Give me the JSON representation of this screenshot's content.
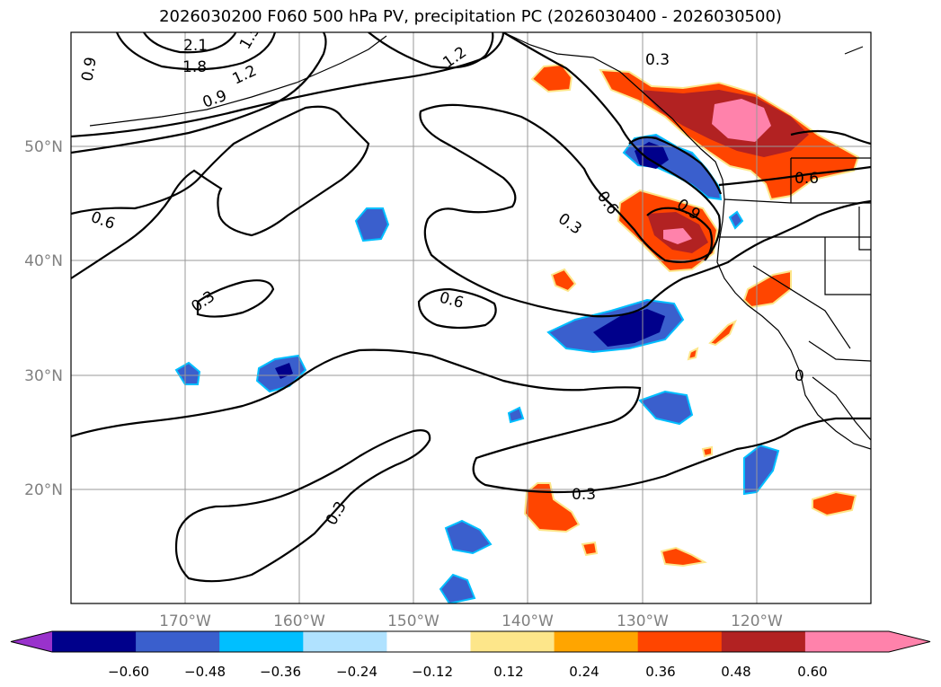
{
  "title": "2026030200 F060 500 hPa PV, precipitation PC (2026030400 - 2026030500)",
  "map": {
    "lon_range": [
      -180,
      -110
    ],
    "lat_range": [
      10,
      60
    ],
    "lon_ticks": [
      {
        "lon": -170,
        "label": "170°W"
      },
      {
        "lon": -160,
        "label": "160°W"
      },
      {
        "lon": -150,
        "label": "150°W"
      },
      {
        "lon": -140,
        "label": "140°W"
      },
      {
        "lon": -130,
        "label": "130°W"
      },
      {
        "lon": -120,
        "label": "120°W"
      }
    ],
    "lat_ticks": [
      {
        "lat": 50,
        "label": "50°N"
      },
      {
        "lat": 40,
        "label": "40°N"
      },
      {
        "lat": 30,
        "label": "30°N"
      },
      {
        "lat": 20,
        "label": "20°N"
      }
    ],
    "contour_labels": [
      "2.1",
      "1.8",
      "1.5",
      "1.2",
      "1.2",
      "0.9",
      "0.9",
      "0.9",
      "0.6",
      "0.6",
      "0.6",
      "0.6",
      "0.3",
      "0.3",
      "0.3",
      "0.3",
      "0.3",
      "0.3",
      "0"
    ]
  },
  "colorbar": {
    "ticks": [
      "−0.60",
      "−0.48",
      "−0.36",
      "−0.24",
      "−0.12",
      "0.12",
      "0.24",
      "0.36",
      "0.48",
      "0.60"
    ],
    "colors": [
      "#9932cc",
      "#00008b",
      "#3a5fcd",
      "#00bfff",
      "#b0e2ff",
      "#ffffff",
      "#fde68a",
      "#ffa500",
      "#ff4500",
      "#b22222",
      "#ff82ab",
      "#ff82ab"
    ]
  },
  "colors": {
    "pos_light": "#fde68a",
    "pos_mid": "#ffa500",
    "pos_strong": "#ff4500",
    "pos_deep": "#b22222",
    "pos_max": "#ff82ab",
    "neg_light": "#b0e2ff",
    "neg_mid": "#00bfff",
    "neg_strong": "#3a5fcd",
    "neg_deep": "#00008b"
  }
}
